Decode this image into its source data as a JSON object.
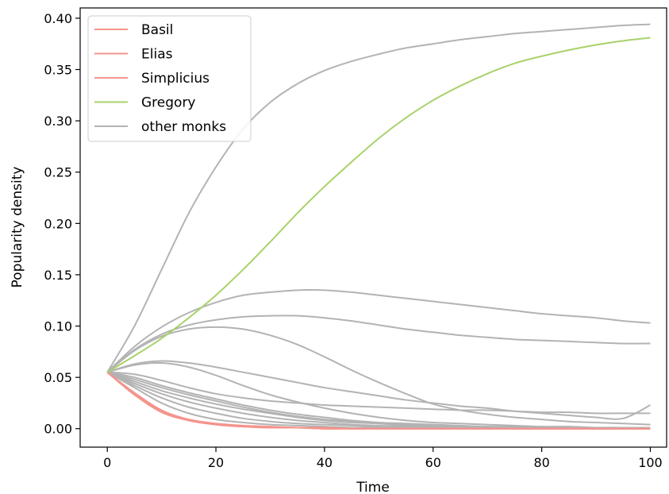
{
  "chart_data": {
    "type": "line",
    "title": "",
    "xlabel": "Time",
    "ylabel": "Popularity density",
    "xlim": [
      -5,
      103
    ],
    "ylim": [
      -0.018,
      0.41
    ],
    "x_ticks": [
      0,
      20,
      40,
      60,
      80,
      100
    ],
    "y_ticks": [
      0.0,
      0.05,
      0.1,
      0.15,
      0.2,
      0.25,
      0.3,
      0.35,
      0.4
    ],
    "x_tick_labels": [
      "0",
      "20",
      "40",
      "60",
      "80",
      "100"
    ],
    "y_tick_labels": [
      "0.00",
      "0.05",
      "0.10",
      "0.15",
      "0.20",
      "0.25",
      "0.30",
      "0.35",
      "0.40"
    ],
    "grid": false,
    "legend_position": "top-left",
    "x": [
      0,
      5,
      10,
      15,
      20,
      25,
      30,
      35,
      40,
      45,
      50,
      55,
      60,
      65,
      70,
      75,
      80,
      85,
      90,
      95,
      100
    ],
    "series": [
      {
        "name": "Basil",
        "color": "#f4948c",
        "in_legend": true,
        "values": [
          0.055,
          0.033,
          0.016,
          0.008,
          0.004,
          0.002,
          0.001,
          0.001,
          0.0,
          0,
          0,
          0,
          0,
          0,
          0,
          0,
          0,
          0,
          0,
          0,
          0
        ]
      },
      {
        "name": "Elias",
        "color": "#f4948c",
        "in_legend": true,
        "values": [
          0.055,
          0.034,
          0.017,
          0.008,
          0.004,
          0.002,
          0.001,
          0.001,
          0.0,
          0,
          0,
          0,
          0,
          0,
          0,
          0,
          0,
          0,
          0,
          0,
          0
        ]
      },
      {
        "name": "Simplicius",
        "color": "#f4948c",
        "in_legend": true,
        "values": [
          0.055,
          0.035,
          0.018,
          0.009,
          0.005,
          0.003,
          0.002,
          0.001,
          0.001,
          0.0,
          0,
          0,
          0,
          0,
          0,
          0,
          0,
          0,
          0,
          0,
          0
        ]
      },
      {
        "name": "Gregory",
        "color": "#a8d26a",
        "in_legend": true,
        "values": [
          0.055,
          0.071,
          0.088,
          0.108,
          0.13,
          0.155,
          0.182,
          0.21,
          0.236,
          0.26,
          0.283,
          0.303,
          0.32,
          0.334,
          0.346,
          0.356,
          0.363,
          0.369,
          0.374,
          0.378,
          0.381
        ]
      },
      {
        "name": "other monks",
        "color": "#b3b3b3",
        "in_legend": true,
        "values": [
          0.055,
          0.1,
          0.155,
          0.21,
          0.255,
          0.292,
          0.318,
          0.336,
          0.349,
          0.358,
          0.365,
          0.371,
          0.375,
          0.379,
          0.382,
          0.385,
          0.387,
          0.389,
          0.391,
          0.393,
          0.394
        ]
      },
      {
        "name": "",
        "color": "#b3b3b3",
        "in_legend": false,
        "values": [
          0.055,
          0.08,
          0.099,
          0.113,
          0.123,
          0.13,
          0.133,
          0.135,
          0.135,
          0.133,
          0.13,
          0.127,
          0.124,
          0.121,
          0.118,
          0.115,
          0.112,
          0.11,
          0.108,
          0.105,
          0.103
        ]
      },
      {
        "name": "",
        "color": "#b3b3b3",
        "in_legend": false,
        "values": [
          0.055,
          0.077,
          0.092,
          0.101,
          0.106,
          0.109,
          0.11,
          0.11,
          0.108,
          0.105,
          0.101,
          0.097,
          0.094,
          0.091,
          0.089,
          0.087,
          0.086,
          0.085,
          0.084,
          0.083,
          0.083
        ]
      },
      {
        "name": "",
        "color": "#b3b3b3",
        "in_legend": false,
        "values": [
          0.055,
          0.076,
          0.09,
          0.097,
          0.099,
          0.097,
          0.091,
          0.082,
          0.07,
          0.057,
          0.045,
          0.034,
          0.024,
          0.018,
          0.014,
          0.011,
          0.009,
          0.007,
          0.006,
          0.005,
          0.004
        ]
      },
      {
        "name": "",
        "color": "#b3b3b3",
        "in_legend": false,
        "values": [
          0.055,
          0.063,
          0.066,
          0.064,
          0.06,
          0.055,
          0.05,
          0.045,
          0.04,
          0.036,
          0.032,
          0.028,
          0.025,
          0.022,
          0.02,
          0.017,
          0.015,
          0.013,
          0.011,
          0.01,
          0.023
        ]
      },
      {
        "name": "",
        "color": "#b3b3b3",
        "in_legend": false,
        "values": [
          0.055,
          0.062,
          0.064,
          0.06,
          0.052,
          0.042,
          0.033,
          0.026,
          0.02,
          0.015,
          0.011,
          0.008,
          0.006,
          0.005,
          0.004,
          0.003,
          0.002,
          0.002,
          0.001,
          0.001,
          0.001
        ]
      },
      {
        "name": "",
        "color": "#b3b3b3",
        "in_legend": false,
        "values": [
          0.055,
          0.053,
          0.047,
          0.04,
          0.034,
          0.03,
          0.027,
          0.025,
          0.023,
          0.022,
          0.021,
          0.02,
          0.019,
          0.018,
          0.018,
          0.017,
          0.016,
          0.016,
          0.015,
          0.015,
          0.015
        ]
      },
      {
        "name": "",
        "color": "#b3b3b3",
        "in_legend": false,
        "values": [
          0.055,
          0.05,
          0.042,
          0.035,
          0.029,
          0.023,
          0.018,
          0.014,
          0.011,
          0.008,
          0.006,
          0.005,
          0.004,
          0.003,
          0.002,
          0.002,
          0.001,
          0.001,
          0.001,
          0.001,
          0.0
        ]
      },
      {
        "name": "",
        "color": "#b3b3b3",
        "in_legend": false,
        "values": [
          0.055,
          0.048,
          0.04,
          0.033,
          0.027,
          0.021,
          0.016,
          0.012,
          0.009,
          0.007,
          0.005,
          0.004,
          0.003,
          0.002,
          0.002,
          0.001,
          0.001,
          0.001,
          0.0,
          0.0,
          0.0
        ]
      },
      {
        "name": "",
        "color": "#b3b3b3",
        "in_legend": false,
        "values": [
          0.055,
          0.046,
          0.037,
          0.03,
          0.024,
          0.019,
          0.015,
          0.011,
          0.008,
          0.006,
          0.005,
          0.003,
          0.002,
          0.002,
          0.001,
          0.001,
          0.001,
          0.0,
          0.0,
          0.0,
          0.0
        ]
      },
      {
        "name": "",
        "color": "#b3b3b3",
        "in_legend": false,
        "values": [
          0.055,
          0.044,
          0.034,
          0.026,
          0.02,
          0.015,
          0.011,
          0.008,
          0.006,
          0.004,
          0.003,
          0.002,
          0.002,
          0.001,
          0.001,
          0.001,
          0.0,
          0.0,
          0.0,
          0.0,
          0.0
        ]
      },
      {
        "name": "",
        "color": "#b3b3b3",
        "in_legend": false,
        "values": [
          0.055,
          0.042,
          0.03,
          0.021,
          0.015,
          0.01,
          0.007,
          0.005,
          0.004,
          0.003,
          0.002,
          0.001,
          0.001,
          0.001,
          0.0,
          0.0,
          0.0,
          0.0,
          0.0,
          0.0,
          0.0
        ]
      },
      {
        "name": "",
        "color": "#b3b3b3",
        "in_legend": false,
        "values": [
          0.055,
          0.04,
          0.025,
          0.015,
          0.009,
          0.006,
          0.004,
          0.003,
          0.002,
          0.001,
          0.001,
          0.0,
          0.0,
          0.0,
          0.0,
          0.0,
          0.0,
          0.0,
          0.0,
          0.0,
          0.0
        ]
      }
    ]
  }
}
